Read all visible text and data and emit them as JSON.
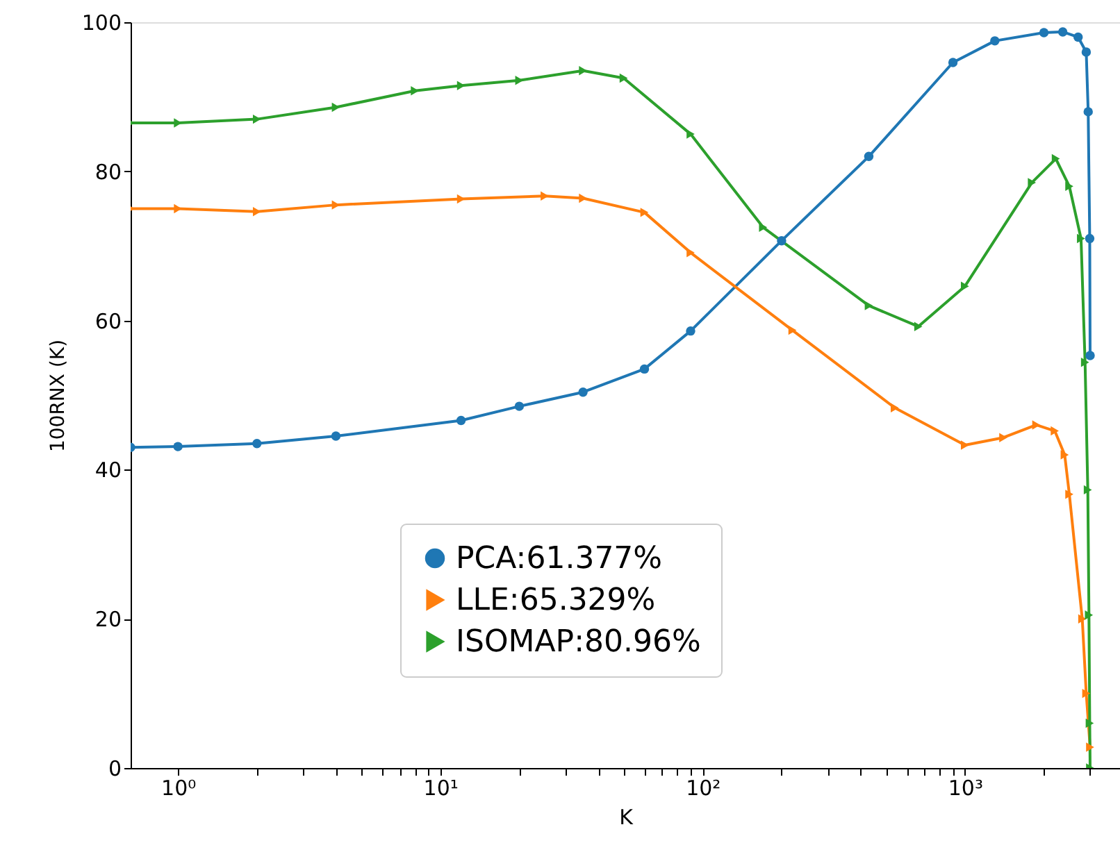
{
  "chart_data": {
    "type": "line",
    "xlabel": "K",
    "ylabel": "100RNX (K)",
    "log": "x",
    "xlim": [
      0.66,
      3900
    ],
    "ylim": [
      0,
      100
    ],
    "xticks": [
      {
        "value": 1,
        "label": "10⁰"
      },
      {
        "value": 2,
        "label": null
      },
      {
        "value": 3,
        "label": null
      },
      {
        "value": 4,
        "label": null
      },
      {
        "value": 5,
        "label": null
      },
      {
        "value": 6,
        "label": null
      },
      {
        "value": 7,
        "label": null
      },
      {
        "value": 8,
        "label": null
      },
      {
        "value": 9,
        "label": null
      },
      {
        "value": 10,
        "label": "10¹"
      },
      {
        "value": 20,
        "label": null
      },
      {
        "value": 30,
        "label": null
      },
      {
        "value": 40,
        "label": null
      },
      {
        "value": 50,
        "label": null
      },
      {
        "value": 60,
        "label": null
      },
      {
        "value": 70,
        "label": null
      },
      {
        "value": 80,
        "label": null
      },
      {
        "value": 90,
        "label": null
      },
      {
        "value": 100,
        "label": "10²"
      },
      {
        "value": 200,
        "label": null
      },
      {
        "value": 300,
        "label": null
      },
      {
        "value": 400,
        "label": null
      },
      {
        "value": 500,
        "label": null
      },
      {
        "value": 600,
        "label": null
      },
      {
        "value": 700,
        "label": null
      },
      {
        "value": 800,
        "label": null
      },
      {
        "value": 900,
        "label": null
      },
      {
        "value": 1000,
        "label": "10³"
      },
      {
        "value": 2000,
        "label": null
      },
      {
        "value": 3000,
        "label": null
      }
    ],
    "yticks": [
      0,
      20,
      40,
      60,
      80,
      100
    ],
    "grid": false,
    "legend": "bottom",
    "line_style": "solid",
    "series": [
      {
        "name": "PCA:61.377%",
        "color": "#1f77b4",
        "marker": "circle",
        "x": [
          0.66,
          1,
          2,
          4,
          12,
          20,
          35,
          60,
          90,
          200,
          430,
          900,
          1300,
          2000,
          2360,
          2700,
          2900,
          2950,
          2990,
          3000
        ],
        "values": [
          43.0,
          43.1,
          43.5,
          44.5,
          46.6,
          48.5,
          50.4,
          53.5,
          58.6,
          70.7,
          82.0,
          94.6,
          97.5,
          98.6,
          98.7,
          98.0,
          96.0,
          88.0,
          71.0,
          55.3
        ]
      },
      {
        "name": "LLE:65.329%",
        "color": "#ff7f0e",
        "marker": "triangle",
        "x": [
          0.66,
          1,
          2,
          4,
          12,
          25,
          35,
          60,
          90,
          220,
          540,
          1000,
          1400,
          1870,
          2200,
          2400,
          2500,
          2800,
          2900,
          3000
        ],
        "values": [
          75.0,
          75.0,
          74.6,
          75.5,
          76.3,
          76.7,
          76.4,
          74.5,
          69.1,
          58.7,
          48.3,
          43.3,
          44.3,
          46.0,
          45.2,
          42.0,
          36.7,
          20.0,
          10.0,
          2.8
        ]
      },
      {
        "name": "ISOMAP:80.96%",
        "color": "#2ca02c",
        "marker": "triangle",
        "x": [
          0.66,
          1,
          2,
          4,
          8,
          12,
          20,
          35,
          50,
          90,
          170,
          430,
          664,
          1000,
          1800,
          2220,
          2500,
          2770,
          2870,
          2940,
          2970,
          2990,
          3000
        ],
        "values": [
          86.5,
          86.5,
          87.0,
          88.6,
          90.8,
          91.5,
          92.2,
          93.5,
          92.5,
          85.0,
          72.5,
          62.0,
          59.2,
          64.6,
          78.5,
          81.7,
          78.0,
          71.0,
          54.4,
          37.3,
          20.5,
          6.0,
          0.0
        ]
      }
    ]
  }
}
